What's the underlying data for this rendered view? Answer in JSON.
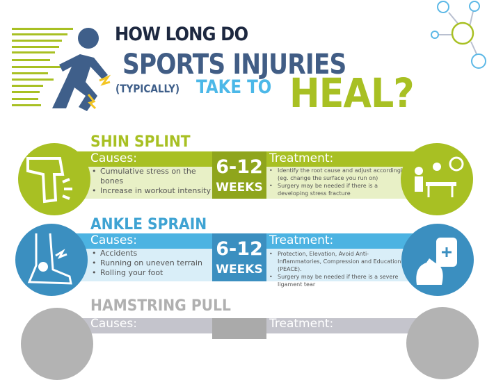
{
  "header": {
    "line1": "HOW LONG DO",
    "line2": "SPORTS INJURIES",
    "line3a": "(TYPICALLY)",
    "line3b": "TAKE TO",
    "line3c": "HEAL?"
  },
  "colors": {
    "green": "#a8c023",
    "blue": "#3ea3d3",
    "navy": "#1d2840",
    "gray": "#b8b8b8"
  },
  "injuries": [
    {
      "name": "SHIN SPLINT",
      "causes_label": "Causes:",
      "causes": [
        "Cumulative stress on the bones",
        "Increase in workout intensity"
      ],
      "duration": "6-12",
      "unit": "WEEKS",
      "treatment_label": "Treatment:",
      "treatment": [
        "Identify the root cause and adjust accordingly (eg. change the surface you run on)",
        "Surgery may be needed if there is a developing stress fracture"
      ]
    },
    {
      "name": "ANKLE SPRAIN",
      "causes_label": "Causes:",
      "causes": [
        "Accidents",
        "Running on uneven terrain",
        "Rolling your foot"
      ],
      "duration": "6-12",
      "unit": "WEEKS",
      "treatment_label": "Treatment:",
      "treatment": [
        "Protection, Elevation, Avoid Anti-Inflammatories, Compression and Education (PEACE).",
        "Surgery may be needed if there is a severe ligament tear"
      ]
    },
    {
      "name": "HAMSTRING PULL",
      "causes_label": "Causes:",
      "treatment_label": "Treatment:"
    }
  ]
}
